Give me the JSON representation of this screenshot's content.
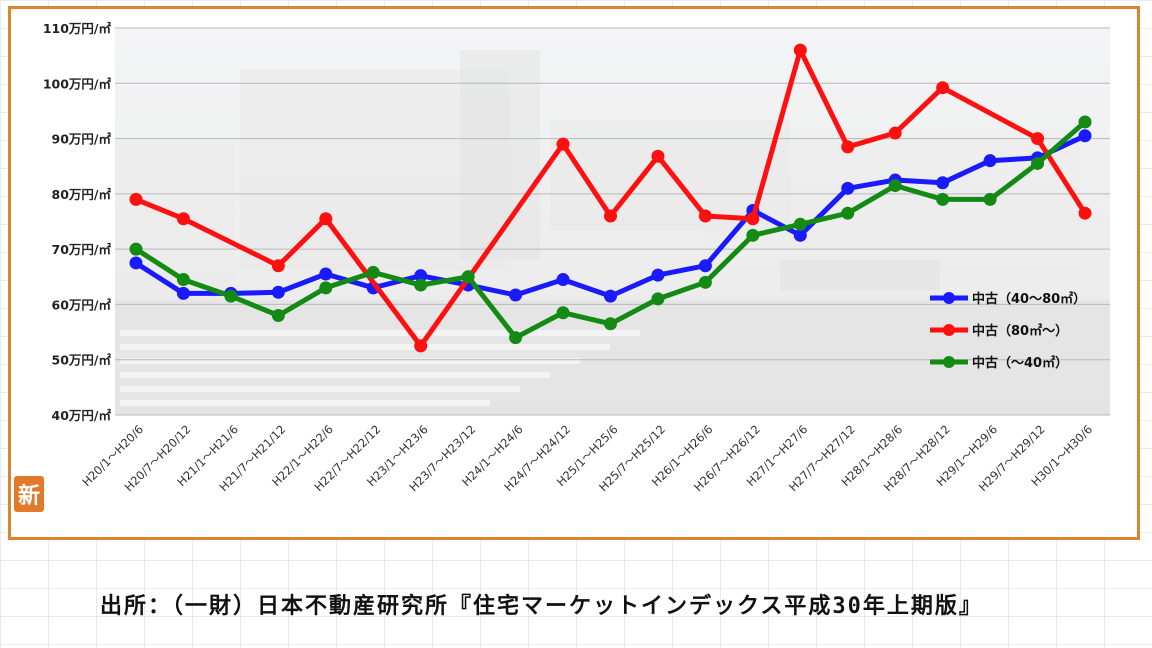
{
  "colors": {
    "frame": "#d9862e",
    "series_blue": "#1a1aff",
    "series_red": "#ff1010",
    "series_green": "#138a13"
  },
  "badge": {
    "text": "新"
  },
  "source": {
    "text": "出所：（一財）日本不動産研究所『住宅マーケットインデックス平成30年上期版』"
  },
  "chart_data": {
    "type": "line",
    "title": "",
    "xlabel": "",
    "ylabel": "",
    "ylim": [
      40,
      110
    ],
    "yticks": [
      {
        "value": 110,
        "label": "110万円/㎡"
      },
      {
        "value": 100,
        "label": "100万円/㎡"
      },
      {
        "value": 90,
        "label": "90万円/㎡"
      },
      {
        "value": 80,
        "label": "80万円/㎡"
      },
      {
        "value": 70,
        "label": "70万円/㎡"
      },
      {
        "value": 60,
        "label": "60万円/㎡"
      },
      {
        "value": 50,
        "label": "50万円/㎡"
      },
      {
        "value": 40,
        "label": "40万円/㎡"
      }
    ],
    "grid": true,
    "legend_position": "right",
    "categories": [
      "H20/1～H20/6",
      "H20/7～H20/12",
      "H21/1～H21/6",
      "H21/7～H21/12",
      "H22/1～H22/6",
      "H22/7～H22/12",
      "H23/1～H23/6",
      "H23/7～H23/12",
      "H24/1～H24/6",
      "H24/7～H24/12",
      "H25/1～H25/6",
      "H25/7～H25/12",
      "H26/1～H26/6",
      "H26/7～H26/12",
      "H27/1～H27/6",
      "H27/7～H27/12",
      "H28/1～H28/6",
      "H28/7～H28/12",
      "H29/1～H29/6",
      "H29/7～H29/12",
      "H30/1～H30/6"
    ],
    "series": [
      {
        "name": "中古（40～80㎡）",
        "color": "#1a1aff",
        "values": [
          67.5,
          62,
          62,
          62.2,
          65.5,
          63,
          65.2,
          63.5,
          61.7,
          64.5,
          61.5,
          65.3,
          67,
          77,
          72.5,
          81,
          82.5,
          82,
          86,
          86.5,
          90.5
        ]
      },
      {
        "name": "中古（80㎡～）",
        "color": "#ff1010",
        "values": [
          79,
          75.5,
          null,
          67,
          75.5,
          null,
          52.5,
          null,
          null,
          89,
          76,
          86.8,
          76,
          75.5,
          106,
          88.5,
          91,
          99.2,
          null,
          90,
          76.5
        ]
      },
      {
        "name": "中古（～40㎡）",
        "color": "#138a13",
        "values": [
          70,
          64.5,
          61.5,
          58,
          63,
          65.8,
          63.5,
          65,
          54,
          58.5,
          56.5,
          61,
          64,
          72.5,
          74.5,
          76.5,
          81.5,
          79,
          79,
          85.5,
          93
        ]
      }
    ]
  }
}
